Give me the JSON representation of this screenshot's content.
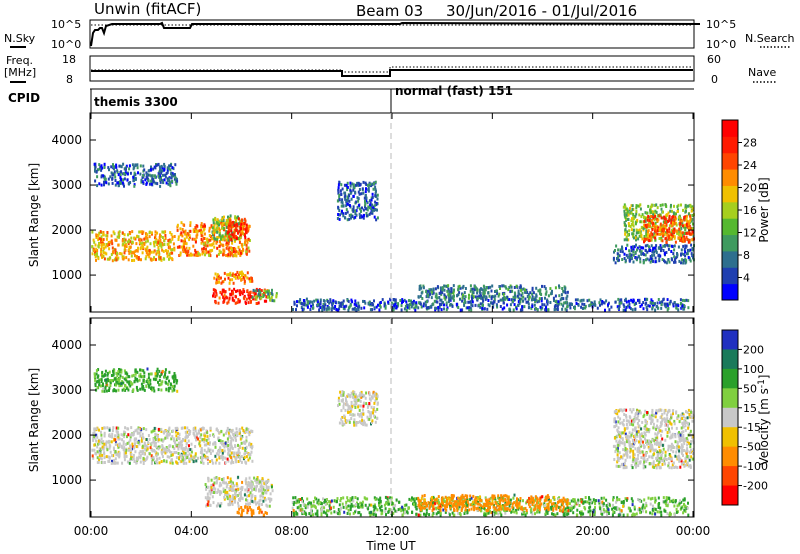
{
  "header": {
    "station": "Unwin (fitACF)",
    "beam": "Beam 03",
    "date_range": "30/Jun/2016 - 01/Jul/2016"
  },
  "small_panels": {
    "nsky_label": "N.Sky",
    "nsky_ticks": [
      "10^5",
      "10^0"
    ],
    "nsearch_label": "N.Search",
    "nsearch_ticks": [
      "10^5",
      "10^0"
    ],
    "freq_label_lines": [
      "Freq.",
      "[MHz]"
    ],
    "freq_ticks": [
      "18",
      "8"
    ],
    "nave_label": "Nave",
    "nave_ticks": [
      "60",
      "0"
    ],
    "cpid_label": "CPID",
    "cpid_modes": [
      {
        "name": "themis 3300",
        "start_hour": 0
      },
      {
        "name": "normal (fast) 151",
        "start_hour": 12
      }
    ]
  },
  "x_axis": {
    "title": "Time UT",
    "ticks": [
      "00:00",
      "04:00",
      "08:00",
      "12:00",
      "16:00",
      "20:00",
      "00:00"
    ],
    "tick_hours": [
      0,
      4,
      8,
      12,
      16,
      20,
      24
    ],
    "range_hours": [
      0,
      24
    ]
  },
  "chart_data": [
    {
      "type": "heatmap",
      "name": "power",
      "ylabel": "Slant Range [km]",
      "y_ticks": [
        1000,
        2000,
        3000,
        4000
      ],
      "ylim": [
        180,
        4600
      ],
      "xlim_hours": [
        0,
        24
      ],
      "colorbar": {
        "label": "Power [dB]",
        "ticks": [
          4,
          8,
          12,
          16,
          20,
          24,
          28
        ],
        "range": [
          0,
          32
        ],
        "colors": [
          "#0000ff",
          "#1f3fb0",
          "#2e6f8e",
          "#3f9a5f",
          "#55b830",
          "#a6cf1e",
          "#f0c000",
          "#ff8c00",
          "#ff4500",
          "#ff1a00",
          "#ff0000"
        ]
      },
      "regions": [
        {
          "x": [
            0.1,
            3.4
          ],
          "y": [
            3000,
            3500
          ],
          "value": 6
        },
        {
          "x": [
            0.0,
            3.3
          ],
          "y": [
            1350,
            2000
          ],
          "value": 20
        },
        {
          "x": [
            3.4,
            6.3
          ],
          "y": [
            1450,
            2200
          ],
          "value": 22
        },
        {
          "x": [
            4.8,
            6.0
          ],
          "y": [
            1800,
            2350
          ],
          "value": 14
        },
        {
          "x": [
            5.4,
            6.2
          ],
          "y": [
            1800,
            2300
          ],
          "value": 26
        },
        {
          "x": [
            4.8,
            6.4
          ],
          "y": [
            850,
            1100
          ],
          "value": 22
        },
        {
          "x": [
            4.8,
            7.0
          ],
          "y": [
            400,
            720
          ],
          "value": 28
        },
        {
          "x": [
            6.4,
            7.4
          ],
          "y": [
            450,
            700
          ],
          "value": 12
        },
        {
          "x": [
            9.8,
            11.4
          ],
          "y": [
            2250,
            3100
          ],
          "value": 6
        },
        {
          "x": [
            8.0,
            23.8
          ],
          "y": [
            250,
            500
          ],
          "value": 6
        },
        {
          "x": [
            13.0,
            19.0
          ],
          "y": [
            500,
            800
          ],
          "value": 8
        },
        {
          "x": [
            20.8,
            24.0
          ],
          "y": [
            1300,
            1700
          ],
          "value": 6
        },
        {
          "x": [
            21.2,
            24.0
          ],
          "y": [
            1800,
            2600
          ],
          "value": 14
        },
        {
          "x": [
            22.0,
            24.0
          ],
          "y": [
            1750,
            2350
          ],
          "value": 24
        }
      ]
    },
    {
      "type": "heatmap",
      "name": "velocity",
      "ylabel": "Slant Range [km]",
      "y_ticks": [
        1000,
        2000,
        3000,
        4000
      ],
      "ylim": [
        180,
        4600
      ],
      "xlim_hours": [
        0,
        24
      ],
      "colorbar": {
        "label": "Velocity [m s^-1]",
        "ticks": [
          200,
          100,
          50,
          15,
          -15,
          -50,
          -100,
          -200
        ],
        "colors": [
          "#2030c0",
          "#1a7a5a",
          "#2aa02a",
          "#80d040",
          "#c8c8c8",
          "#f0c000",
          "#ff8c00",
          "#ff4500",
          "#ff0000"
        ]
      },
      "regions": [
        {
          "x": [
            0.1,
            3.4
          ],
          "y": [
            3000,
            3500
          ],
          "value": 40
        },
        {
          "x": [
            0.0,
            6.4
          ],
          "y": [
            1400,
            2200
          ],
          "value": 0
        },
        {
          "x": [
            4.5,
            7.2
          ],
          "y": [
            450,
            1100
          ],
          "value": 0
        },
        {
          "x": [
            5.8,
            7.0
          ],
          "y": [
            250,
            450
          ],
          "value": -60
        },
        {
          "x": [
            9.8,
            11.4
          ],
          "y": [
            2250,
            3000
          ],
          "value": 0
        },
        {
          "x": [
            8.0,
            23.8
          ],
          "y": [
            250,
            650
          ],
          "value": 30
        },
        {
          "x": [
            13.0,
            19.0
          ],
          "y": [
            350,
            700
          ],
          "value": -50
        },
        {
          "x": [
            20.8,
            24.0
          ],
          "y": [
            1300,
            2600
          ],
          "value": 0
        }
      ]
    }
  ]
}
